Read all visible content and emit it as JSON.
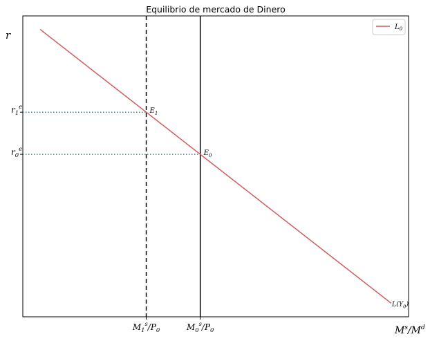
{
  "chart_data": {
    "type": "line",
    "title": "Equilibrio de mercado de Dinero",
    "xlabel": "M^s/M^d",
    "ylabel": "r",
    "xlim": [
      0,
      100
    ],
    "ylim": [
      0,
      100
    ],
    "grid": false,
    "legend": {
      "position": "top-right",
      "entries": [
        "L_0"
      ]
    },
    "colors": {
      "demand_line": "#cd5c5c",
      "supply_lines": "#000000",
      "equilibrium_guides": "#2e8b8b"
    },
    "series": [
      {
        "name": "L_0",
        "kind": "demand",
        "x": [
          4.5,
          95.5
        ],
        "y": [
          95.5,
          4.5
        ],
        "end_label": "L(Y_0)"
      }
    ],
    "vlines": [
      {
        "id": "ms0",
        "x": 46,
        "style": "solid",
        "tick_label": "M_0^s/P_0"
      },
      {
        "id": "ms1",
        "x": 32,
        "style": "dashed",
        "tick_label": "M_1^s/P_0"
      }
    ],
    "equilibria": [
      {
        "id": "e0",
        "label": "E_0",
        "x": 46,
        "y": 54,
        "ytick_label": "r_0^e"
      },
      {
        "id": "e1",
        "label": "E_1",
        "x": 32,
        "y": 68,
        "ytick_label": "r_1^e"
      }
    ]
  }
}
